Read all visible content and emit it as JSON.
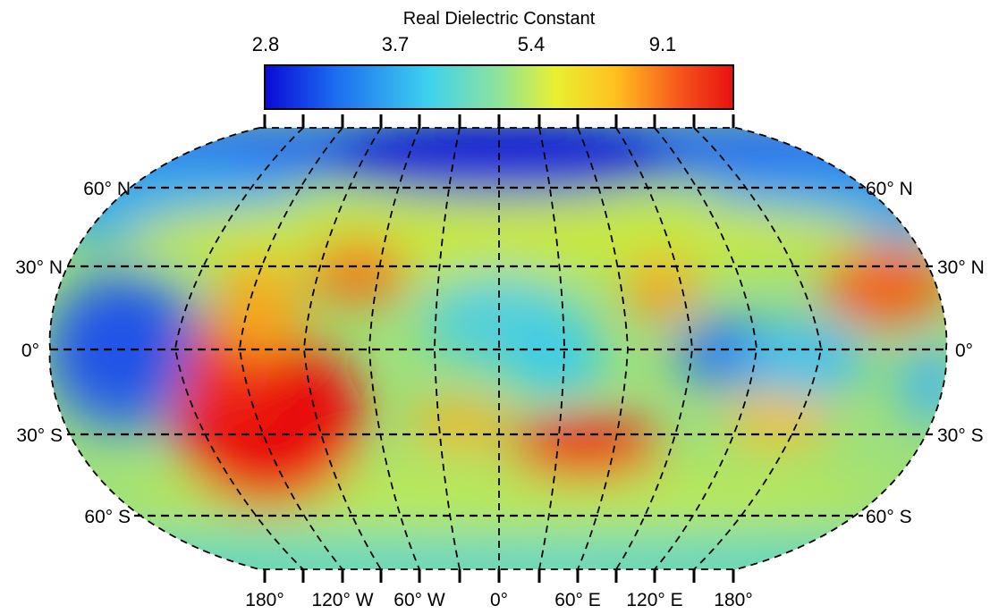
{
  "colorbar": {
    "title": "Real Dielectric Constant",
    "tick_labels": [
      "2.8",
      "3.7",
      "5.4",
      "9.1"
    ],
    "colors": [
      "#0a0ad8",
      "#1c6cf0",
      "#3ed2ee",
      "#8fe39a",
      "#e8f030",
      "#ffc020",
      "#f65a1c",
      "#e81010"
    ]
  },
  "map": {
    "projection": "Robinson",
    "lat_labels_left": [
      "60° N",
      "30° N",
      "0°",
      "30° S",
      "60° S"
    ],
    "lat_labels_right": [
      "60° N",
      "30° N",
      "0°",
      "30° S",
      "60° S"
    ],
    "lon_labels": [
      "180°",
      "120° W",
      "60° W",
      "0°",
      "60° E",
      "120° E",
      "180°"
    ]
  }
}
